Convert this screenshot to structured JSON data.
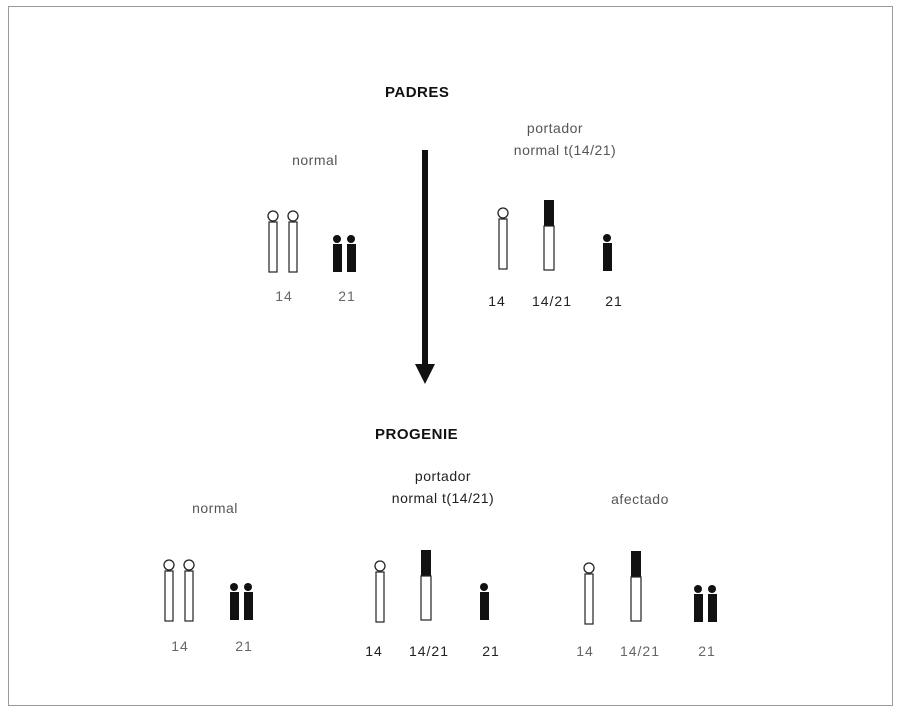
{
  "parents": {
    "heading": "PADRES",
    "normal": {
      "label": "normal",
      "nums": [
        "14",
        "21"
      ]
    },
    "carrier": {
      "label_line1": "portador",
      "label_line2": "normal  t(14/21)",
      "nums": [
        "14",
        "14/21",
        "21"
      ]
    }
  },
  "offspring": {
    "heading": "PROGENIE",
    "normal": {
      "label": "normal",
      "nums": [
        "14",
        "21"
      ]
    },
    "carrier": {
      "label_line1": "portador",
      "label_line2": "normal  t(14/21)",
      "nums": [
        "14",
        "14/21",
        "21"
      ]
    },
    "affected": {
      "label": "afectado",
      "nums": [
        "14",
        "14/21",
        "21"
      ]
    }
  },
  "colors": {
    "ink": "#111111",
    "frame": "#9a9a9a"
  }
}
